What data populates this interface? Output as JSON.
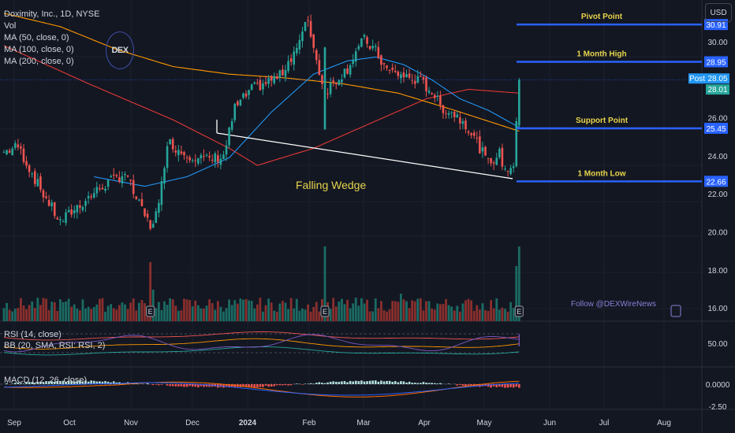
{
  "header": {
    "symbol_line": "Doximity, Inc., 1D, NYSE",
    "vol_label": "Vol",
    "ma50": "MA (50, close, 0)",
    "ma100": "MA (100, close, 0)",
    "ma200": "MA (200, close, 0)",
    "currency": "USD",
    "logo": "DEX"
  },
  "rsi_pane": {
    "rsi_label": "RSI (14, close)",
    "bb_label": "BB (20, SMA, RSI: RSI, 2)",
    "tick": "50.00"
  },
  "macd_pane": {
    "macd_label": "MACD (12, 26, close)",
    "ticks": [
      "0.0000",
      "-2.50"
    ]
  },
  "watermark": "Follow @DEXWireNews",
  "pattern_label": "Falling Wedge",
  "colors": {
    "up": "#26a69a",
    "down": "#ef5350",
    "ma50": "#2196f3",
    "ma100": "#ff9800",
    "ma200": "#e53935",
    "level": "#2962ff",
    "level_text": "#e8d44d"
  },
  "chart_data": {
    "type": "candlestick",
    "x_labels": [
      "Sep",
      "Oct",
      "Nov",
      "Dec",
      "2024",
      "Feb",
      "Mar",
      "Apr",
      "May",
      "Jun",
      "Jul",
      "Aug"
    ],
    "y_ticks": [
      "30.00",
      "26.00",
      "24.00",
      "22.00",
      "20.00",
      "18.00",
      "16.00"
    ],
    "ylim": [
      15.3,
      32.2
    ],
    "levels": [
      {
        "name": "Pivot Point",
        "value": 30.91,
        "tag": "30.91"
      },
      {
        "name": "1 Month High",
        "value": 28.95,
        "tag": "28.95"
      },
      {
        "name": "Support Point",
        "value": 25.45,
        "tag": "25.45"
      },
      {
        "name": "1 Month Low",
        "value": 22.66,
        "tag": "22.66"
      }
    ],
    "post_price": {
      "label": "Post",
      "value": 28.05,
      "tag": "28.05"
    },
    "last_price": {
      "value": 28.01,
      "tag": "28.01"
    },
    "wedge": {
      "upper_start": 25.2,
      "lower_end": 22.8
    },
    "close_anchors": [
      [
        0,
        24.2
      ],
      [
        5,
        24.5
      ],
      [
        12,
        22.5
      ],
      [
        20,
        20.5
      ],
      [
        25,
        21.2
      ],
      [
        35,
        22.4
      ],
      [
        43,
        23.1
      ],
      [
        48,
        21.4
      ],
      [
        52,
        20.3
      ],
      [
        55,
        21.3
      ],
      [
        58,
        24.8
      ],
      [
        63,
        24.2
      ],
      [
        72,
        23.8
      ],
      [
        78,
        24.0
      ],
      [
        82,
        26.5
      ],
      [
        88,
        27.5
      ],
      [
        98,
        28.2
      ],
      [
        105,
        30.0
      ],
      [
        108,
        31.2
      ],
      [
        111,
        29.0
      ],
      [
        114,
        27.4
      ],
      [
        118,
        28.0
      ],
      [
        122,
        28.6
      ],
      [
        125,
        29.5
      ],
      [
        128,
        30.1
      ],
      [
        132,
        29.5
      ],
      [
        136,
        28.5
      ],
      [
        142,
        28.2
      ],
      [
        148,
        27.9
      ],
      [
        152,
        27.4
      ],
      [
        155,
        26.6
      ],
      [
        160,
        26.2
      ],
      [
        164,
        25.7
      ],
      [
        168,
        24.7
      ],
      [
        172,
        23.6
      ],
      [
        176,
        24.1
      ],
      [
        178,
        23.2
      ],
      [
        181,
        23.6
      ],
      [
        183,
        28.01
      ]
    ],
    "ma50_anchors": [
      [
        32,
        22.9
      ],
      [
        50,
        22.4
      ],
      [
        65,
        22.9
      ],
      [
        80,
        23.9
      ],
      [
        95,
        26.3
      ],
      [
        110,
        28.3
      ],
      [
        122,
        29.0
      ],
      [
        132,
        29.2
      ],
      [
        142,
        28.8
      ],
      [
        152,
        28.0
      ],
      [
        162,
        27.0
      ],
      [
        172,
        26.4
      ],
      [
        183,
        25.5
      ]
    ],
    "ma100_anchors": [
      [
        0,
        31.5
      ],
      [
        20,
        30.8
      ],
      [
        40,
        29.6
      ],
      [
        60,
        28.7
      ],
      [
        80,
        28.3
      ],
      [
        100,
        28.1
      ],
      [
        120,
        27.8
      ],
      [
        140,
        27.3
      ],
      [
        160,
        26.4
      ],
      [
        183,
        25.3
      ]
    ],
    "ma200_anchors": [
      [
        0,
        29.8
      ],
      [
        30,
        27.8
      ],
      [
        60,
        25.9
      ],
      [
        80,
        24.4
      ],
      [
        90,
        23.5
      ],
      [
        110,
        24.4
      ],
      [
        130,
        25.7
      ],
      [
        150,
        27.0
      ],
      [
        165,
        27.5
      ],
      [
        183,
        27.3
      ]
    ],
    "volume_spikes": [
      [
        52,
        0.75
      ],
      [
        53,
        0.4
      ],
      [
        114,
        0.95
      ],
      [
        141,
        0.35
      ],
      [
        182,
        0.7
      ],
      [
        183,
        0.95
      ]
    ],
    "events": [
      52,
      114,
      183
    ]
  }
}
